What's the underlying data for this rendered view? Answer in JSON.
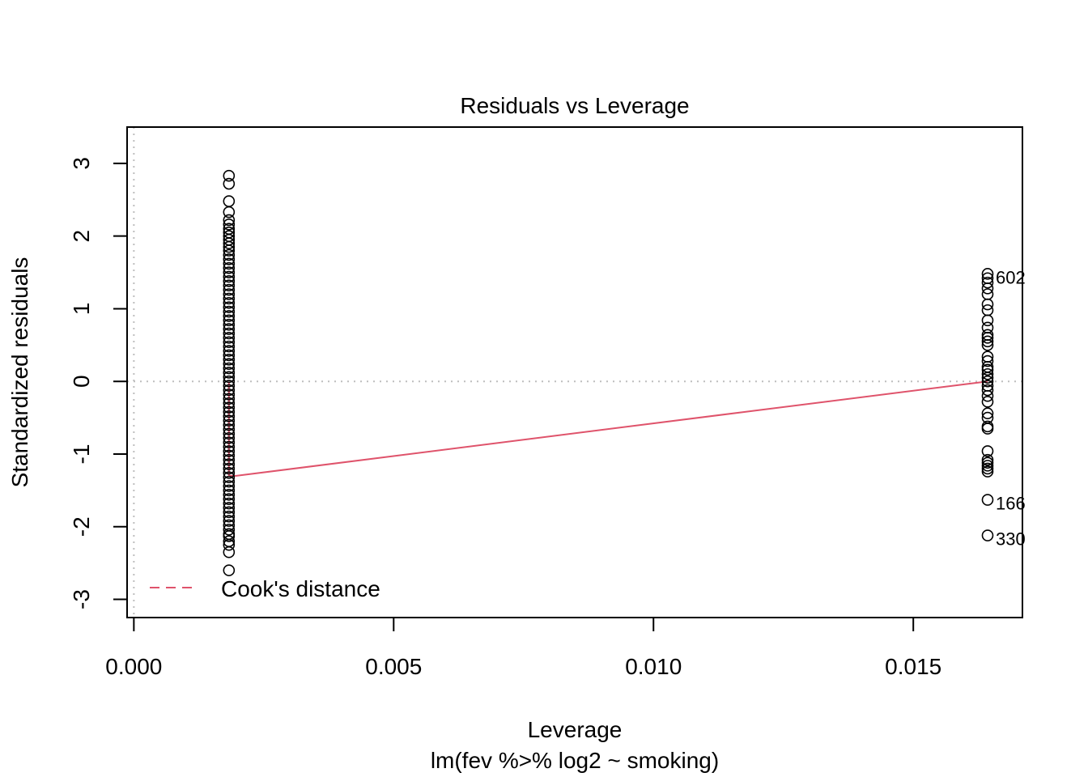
{
  "chart_data": {
    "type": "scatter",
    "title": "Residuals vs Leverage",
    "xlabel": "Leverage",
    "subtitle": "lm(fev %>% log2 ~ smoking)",
    "ylabel": "Standardized residuals",
    "xlim": [
      -0.00013,
      0.0171
    ],
    "ylim": [
      -3.25,
      3.5
    ],
    "x_ticks": [
      0.0,
      0.005,
      0.01,
      0.015
    ],
    "x_tick_labels": [
      "0.000",
      "0.005",
      "0.010",
      "0.015"
    ],
    "y_ticks": [
      -3,
      -2,
      -1,
      0,
      1,
      2,
      3
    ],
    "y_tick_labels": [
      "-3",
      "-2",
      "-1",
      "0",
      "1",
      "2",
      "3"
    ],
    "reference_lines": {
      "h": 0,
      "v": 0
    },
    "series": [
      {
        "name": "",
        "x": 0.00183,
        "y": [
          2.83,
          2.72,
          2.48,
          2.33,
          2.22,
          2.16,
          2.1,
          2.05,
          2.0,
          1.95,
          1.9,
          1.85,
          1.8,
          1.74,
          1.68,
          1.62,
          1.56,
          1.5,
          1.44,
          1.38,
          1.32,
          1.26,
          1.2,
          1.14,
          1.08,
          1.02,
          0.96,
          0.9,
          0.84,
          0.78,
          0.72,
          0.66,
          0.6,
          0.54,
          0.48,
          0.42,
          0.36,
          0.3,
          0.24,
          0.18,
          0.12,
          0.06,
          0.0,
          -0.06,
          -0.12,
          -0.18,
          -0.24,
          -0.3,
          -0.36,
          -0.42,
          -0.48,
          -0.54,
          -0.6,
          -0.66,
          -0.72,
          -0.78,
          -0.84,
          -0.9,
          -0.96,
          -1.02,
          -1.08,
          -1.14,
          -1.2,
          -1.26,
          -1.32,
          -1.38,
          -1.44,
          -1.5,
          -1.56,
          -1.62,
          -1.68,
          -1.74,
          -1.8,
          -1.86,
          -1.92,
          -1.98,
          -2.04,
          -2.1,
          -2.13,
          -2.2,
          -2.25,
          -2.35,
          -2.6
        ]
      },
      {
        "name": "",
        "x": 0.01643,
        "y": [
          1.48,
          1.42,
          1.36,
          1.28,
          1.2,
          1.06,
          0.98,
          0.84,
          0.74,
          0.64,
          0.6,
          0.55,
          0.5,
          0.34,
          0.28,
          0.2,
          0.16,
          0.1,
          0.05,
          0.0,
          -0.06,
          -0.12,
          -0.2,
          -0.28,
          -0.44,
          -0.5,
          -0.62,
          -0.65,
          -0.96,
          -1.08,
          -1.12,
          -1.16,
          -1.2,
          -1.24,
          -1.63,
          -2.12
        ]
      }
    ],
    "point_labels": [
      {
        "text": "602",
        "x": 0.01643,
        "y": 1.48
      },
      {
        "text": "166",
        "x": 0.01643,
        "y": -1.63
      },
      {
        "text": "330",
        "x": 0.01643,
        "y": -2.12
      }
    ],
    "cooks_line": {
      "x": [
        0.00183,
        0.00183,
        0.00197,
        0.01643
      ],
      "y": [
        0.0,
        -1.3,
        -1.3,
        0.0
      ],
      "color": "#df536b"
    },
    "legend": {
      "label": "Cook's distance",
      "position": "bottom-left",
      "color": "#df536b"
    },
    "colors": {
      "points": "#000000",
      "reference": "#bebebe",
      "cooks": "#df536b"
    }
  }
}
